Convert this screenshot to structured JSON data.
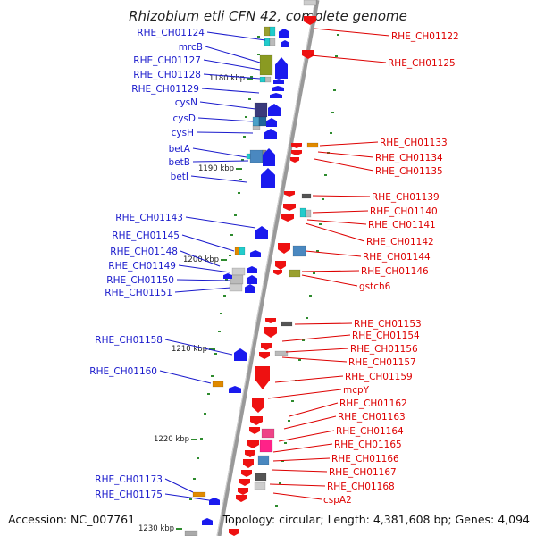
{
  "title": "Rhizobium etli CFN 42, complete genome",
  "footer": {
    "accession": "Accession: NC_007761",
    "topology": "Topology: circular; Length: 4,381,608 bp; Genes: 4,094"
  },
  "colors": {
    "left_label": "#1a1acc",
    "right_label": "#dd0000",
    "backbone": "#999999",
    "tick": "#2e8b2e"
  },
  "scale_labels": [
    "1180 kbp",
    "1190 kbp",
    "1200 kbp",
    "1210 kbp",
    "1220 kbp",
    "1230 kbp"
  ],
  "left_genes": [
    "RHE_CH01124",
    "mrcB",
    "RHE_CH01127",
    "RHE_CH01128",
    "RHE_CH01129",
    "cysN",
    "cysD",
    "cysH",
    "betA",
    "betB",
    "betI",
    "RHE_CH01143",
    "RHE_CH01145",
    "RHE_CH01148",
    "RHE_CH01149",
    "RHE_CH01150",
    "RHE_CH01151",
    "RHE_CH01158",
    "RHE_CH01160",
    "RHE_CH01173",
    "RHE_CH01175"
  ],
  "right_genes": [
    "RHE_CH01122",
    "RHE_CH01125",
    "RHE_CH01133",
    "RHE_CH01134",
    "RHE_CH01135",
    "RHE_CH01139",
    "RHE_CH01140",
    "RHE_CH01141",
    "RHE_CH01142",
    "RHE_CH01144",
    "RHE_CH01146",
    "gstch6",
    "RHE_CH01153",
    "RHE_CH01154",
    "RHE_CH01156",
    "RHE_CH01157",
    "RHE_CH01159",
    "mcpY",
    "RHE_CH01162",
    "RHE_CH01163",
    "RHE_CH01164",
    "RHE_CH01165",
    "RHE_CH01166",
    "RHE_CH01167",
    "RHE_CH01168",
    "cspA2"
  ]
}
